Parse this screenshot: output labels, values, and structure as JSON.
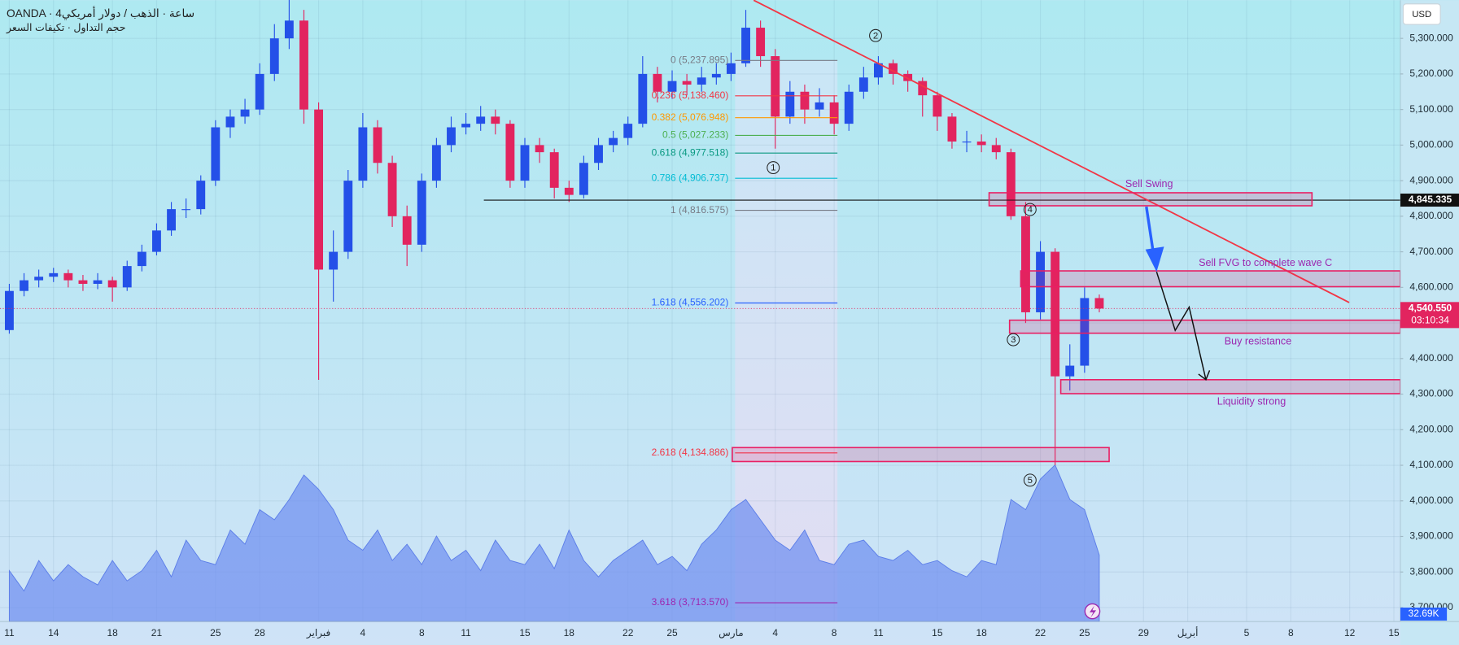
{
  "chart_data": {
    "type": "candlestick",
    "title": "OANDA · 4ساعة · الذهب / دولار أمريكي",
    "subtitle": "حجم التداول · تكيفات السعر",
    "currency": "USD",
    "up_color": "#2450e8",
    "down_color": "#e2245f",
    "grid": true,
    "x": [
      0,
      1,
      2,
      3,
      4,
      5,
      6,
      7,
      8,
      9,
      10,
      11,
      12,
      13,
      14,
      15,
      16,
      17,
      18,
      19,
      20,
      21,
      22,
      23,
      24,
      25,
      26,
      27,
      28,
      29,
      30,
      31,
      32,
      33,
      34,
      35,
      36,
      37,
      38,
      39,
      40,
      41,
      42,
      43,
      44,
      45,
      46,
      47,
      48,
      49,
      50,
      51,
      52,
      53,
      54,
      55,
      56,
      57,
      58,
      59,
      60,
      61,
      62,
      63,
      64,
      65,
      66,
      67,
      68,
      69,
      70,
      71,
      72,
      73,
      74
    ],
    "open": [
      4480,
      4590,
      4620,
      4630,
      4640,
      4620,
      4610,
      4620,
      4600,
      4660,
      4700,
      4760,
      4820,
      4820,
      4900,
      5050,
      5080,
      5100,
      5200,
      5300,
      5350,
      5100,
      4650,
      4700,
      4900,
      5050,
      4950,
      4800,
      4720,
      4900,
      5000,
      5050,
      5060,
      5080,
      5060,
      4900,
      5000,
      4980,
      4880,
      4860,
      4950,
      5000,
      5020,
      5060,
      5200,
      5150,
      5180,
      5170,
      5190,
      5200,
      5230,
      5330,
      5250,
      5080,
      5150,
      5100,
      5120,
      5060,
      5150,
      5190,
      5230,
      5200,
      5180,
      5140,
      5080,
      5010,
      5010,
      5000,
      4980,
      4800,
      4530,
      4700,
      4350,
      4380,
      4570
    ],
    "high": [
      4610,
      4640,
      4650,
      4655,
      4650,
      4635,
      4640,
      4630,
      4675,
      4720,
      4780,
      4840,
      4850,
      4915,
      5070,
      5100,
      5130,
      5230,
      5340,
      5420,
      5380,
      5120,
      4760,
      4930,
      5090,
      5070,
      4970,
      4830,
      4920,
      5020,
      5080,
      5090,
      5110,
      5100,
      5070,
      5020,
      5020,
      4990,
      4900,
      4970,
      5020,
      5040,
      5080,
      5250,
      5220,
      5210,
      5200,
      5220,
      5230,
      5260,
      5380,
      5350,
      5270,
      5180,
      5170,
      5160,
      5140,
      5170,
      5220,
      5250,
      5240,
      5210,
      5190,
      5150,
      5090,
      5040,
      5030,
      5020,
      4990,
      4840,
      4730,
      4710,
      4440,
      4600,
      4580
    ],
    "low": [
      4470,
      4575,
      4600,
      4615,
      4600,
      4590,
      4595,
      4560,
      4590,
      4645,
      4690,
      4745,
      4795,
      4805,
      4885,
      5020,
      5060,
      5085,
      5180,
      5270,
      5060,
      4340,
      4560,
      4680,
      4880,
      4920,
      4770,
      4660,
      4700,
      4880,
      4980,
      5030,
      5040,
      5030,
      4880,
      4880,
      4950,
      4850,
      4840,
      4850,
      4930,
      4980,
      5000,
      5050,
      5120,
      5130,
      5140,
      5150,
      5170,
      5180,
      5220,
      5220,
      4990,
      5060,
      5060,
      5080,
      5030,
      5040,
      5130,
      5170,
      5170,
      5150,
      5080,
      5040,
      4990,
      4980,
      4980,
      4960,
      4790,
      4500,
      4510,
      4100,
      4310,
      4360,
      4530
    ],
    "close": [
      4590,
      4620,
      4630,
      4640,
      4620,
      4610,
      4620,
      4600,
      4660,
      4700,
      4760,
      4820,
      4820,
      4900,
      5050,
      5080,
      5100,
      5200,
      5300,
      5350,
      5100,
      4650,
      4700,
      4900,
      5050,
      4950,
      4800,
      4720,
      4900,
      5000,
      5050,
      5060,
      5080,
      5060,
      4900,
      5000,
      4980,
      4880,
      4860,
      4950,
      5000,
      5020,
      5060,
      5200,
      5150,
      5180,
      5170,
      5190,
      5200,
      5230,
      5330,
      5250,
      5080,
      5150,
      5100,
      5120,
      5060,
      5150,
      5190,
      5230,
      5200,
      5180,
      5140,
      5080,
      5010,
      5010,
      5000,
      4980,
      4800,
      4530,
      4700,
      4350,
      4380,
      4570,
      4540.55
    ],
    "xlim": [
      -0.632,
      94.44
    ],
    "xticks": [
      {
        "value": 0,
        "label": "11"
      },
      {
        "value": 3,
        "label": "14"
      },
      {
        "value": 7,
        "label": "18"
      },
      {
        "value": 10,
        "label": "21"
      },
      {
        "value": 14,
        "label": "25"
      },
      {
        "value": 17,
        "label": "28"
      },
      {
        "value": 21,
        "label": "فبراير"
      },
      {
        "value": 24,
        "label": "4"
      },
      {
        "value": 28,
        "label": "8"
      },
      {
        "value": 31,
        "label": "11"
      },
      {
        "value": 35,
        "label": "15"
      },
      {
        "value": 38,
        "label": "18"
      },
      {
        "value": 42,
        "label": "22"
      },
      {
        "value": 45,
        "label": "25"
      },
      {
        "value": 49,
        "label": "مارس"
      },
      {
        "value": 52,
        "label": "4"
      },
      {
        "value": 56,
        "label": "8"
      },
      {
        "value": 59,
        "label": "11"
      },
      {
        "value": 63,
        "label": "15"
      },
      {
        "value": 66,
        "label": "18"
      },
      {
        "value": 70,
        "label": "22"
      },
      {
        "value": 73,
        "label": "25"
      },
      {
        "value": 77,
        "label": "29"
      },
      {
        "value": 80,
        "label": "أبريل"
      },
      {
        "value": 84,
        "label": "5"
      },
      {
        "value": 87,
        "label": "8"
      },
      {
        "value": 91,
        "label": "12"
      },
      {
        "value": 94,
        "label": "15"
      }
    ],
    "ylim": [
      3660.8,
      5407.2
    ],
    "yticks": [
      {
        "value": 3700,
        "label": "3,700.000"
      },
      {
        "value": 3800,
        "label": "3,800.000"
      },
      {
        "value": 3900,
        "label": "3,900.000"
      },
      {
        "value": 4000,
        "label": "4,000.000"
      },
      {
        "value": 4100,
        "label": "4,100.000"
      },
      {
        "value": 4200,
        "label": "4,200.000"
      },
      {
        "value": 4300,
        "label": "4,300.000"
      },
      {
        "value": 4400,
        "label": "4,400.000"
      },
      {
        "value": 4500,
        "label": "4,500.000"
      },
      {
        "value": 4600,
        "label": "4,600.000"
      },
      {
        "value": 4700,
        "label": "4,700.000"
      },
      {
        "value": 4800,
        "label": "4,800.000"
      },
      {
        "value": 4900,
        "label": "4,900.000"
      },
      {
        "value": 5000,
        "label": "5,000.000"
      },
      {
        "value": 5100,
        "label": "5,100.000"
      },
      {
        "value": 5200,
        "label": "5,200.000"
      },
      {
        "value": 5300,
        "label": "5,300.000"
      }
    ],
    "volume": {
      "color": "#6f8ff0",
      "vlim": [
        0,
        80
      ],
      "values": [
        25,
        15,
        30,
        20,
        28,
        22,
        18,
        30,
        20,
        25,
        35,
        22,
        40,
        30,
        28,
        45,
        38,
        55,
        50,
        60,
        72,
        65,
        55,
        40,
        35,
        45,
        30,
        38,
        28,
        42,
        30,
        35,
        25,
        40,
        30,
        28,
        38,
        26,
        45,
        30,
        22,
        30,
        35,
        40,
        28,
        32,
        25,
        38,
        45,
        55,
        60,
        50,
        40,
        35,
        45,
        30,
        28,
        38,
        40,
        32,
        30,
        35,
        28,
        30,
        25,
        22,
        30,
        28,
        60,
        55,
        70,
        77,
        60,
        55,
        32.69
      ],
      "value_labels": [
        null,
        null,
        null,
        null,
        null,
        null,
        null,
        null,
        null,
        null,
        null,
        null,
        null,
        null,
        null,
        null,
        null,
        null,
        null,
        null,
        null,
        null,
        null,
        null,
        null,
        null,
        null,
        null,
        null,
        null,
        null,
        null,
        null,
        null,
        null,
        null,
        null,
        null,
        null,
        null,
        null,
        null,
        null,
        null,
        null,
        null,
        null,
        null,
        null,
        null,
        null,
        null,
        null,
        null,
        null,
        null,
        null,
        null,
        null,
        null,
        null,
        null,
        null,
        null,
        null,
        null,
        null,
        null,
        null,
        null,
        null,
        null,
        null,
        null,
        "32.69K"
      ]
    },
    "key_level": {
      "value": 4845.335,
      "label": "4,845.335"
    },
    "last_price": {
      "value": 4540.55,
      "label": "4,540.550"
    },
    "countdown": "03:10:34",
    "fib": [
      {
        "value": 5237.895,
        "label": "0 (5,237.895)",
        "color": "#787b86"
      },
      {
        "value": 5138.46,
        "label": "0.236 (5,138.460)",
        "color": "#f23645"
      },
      {
        "value": 5076.948,
        "label": "0.382 (5,076.948)",
        "color": "#ff9800"
      },
      {
        "value": 5027.233,
        "label": "0.5 (5,027.233)",
        "color": "#4caf50"
      },
      {
        "value": 4977.518,
        "label": "0.618 (4,977.518)",
        "color": "#089981"
      },
      {
        "value": 4906.737,
        "label": "0.786 (4,906.737)",
        "color": "#00bcd4"
      },
      {
        "value": 4816.575,
        "label": "1 (4,816.575)",
        "color": "#787b86"
      },
      {
        "value": 4556.202,
        "label": "1.618 (4,556.202)",
        "color": "#2962ff"
      },
      {
        "value": 4134.886,
        "label": "2.618 (4,134.886)",
        "color": "#f23645"
      },
      {
        "value": 3713.57,
        "label": "3.618 (3,713.570)",
        "color": "#9c27b0"
      }
    ],
    "zones": [
      "Sell Swing",
      "Sell FVG to complete wave C",
      "Buy resistance",
      "Liquidity strong"
    ],
    "waves": [
      "1",
      "2",
      "3",
      "4",
      "5"
    ]
  }
}
